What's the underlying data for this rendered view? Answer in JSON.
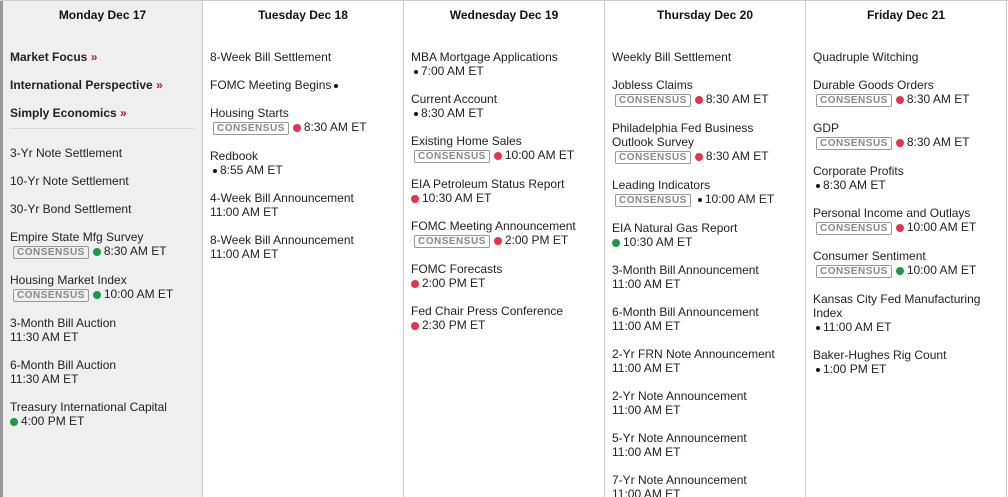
{
  "colors": {
    "red": "#e8334a",
    "green": "#1a9a45",
    "black": "#111111"
  },
  "consensus_label": "CONSENSUS",
  "days": [
    {
      "header": "Monday Dec 17",
      "today": true,
      "links": [
        {
          "label": "Market Focus",
          "arrow": "»"
        },
        {
          "label": "International Perspective",
          "arrow": "»"
        },
        {
          "label": "Simply Economics",
          "arrow": "»"
        }
      ],
      "items": [
        {
          "title": "3-Yr Note Settlement"
        },
        {
          "title": "10-Yr Note Settlement"
        },
        {
          "title": "30-Yr Bond Settlement"
        },
        {
          "title": "Empire State Mfg Survey",
          "consensus": true,
          "dot": "green",
          "time": "8:30 AM ET"
        },
        {
          "title": "Housing Market Index",
          "consensus": true,
          "dot": "green",
          "time": "10:00 AM ET"
        },
        {
          "title": "3-Month Bill Auction",
          "time": "11:30 AM ET"
        },
        {
          "title": "6-Month Bill Auction",
          "time": "11:30 AM ET"
        },
        {
          "title": "Treasury International Capital",
          "dot": "green",
          "time": "4:00 PM ET"
        }
      ]
    },
    {
      "header": "Tuesday Dec 18",
      "items": [
        {
          "title": "8-Week Bill Settlement"
        },
        {
          "title": "FOMC Meeting Begins",
          "inline_dot": true
        },
        {
          "title": "Housing Starts",
          "consensus": true,
          "dot": "red",
          "time": "8:30 AM ET"
        },
        {
          "title": "Redbook",
          "dot": "black",
          "time": "8:55 AM ET"
        },
        {
          "title": "4-Week Bill Announcement",
          "time": "11:00 AM ET"
        },
        {
          "title": "8-Week Bill Announcement",
          "time": "11:00 AM ET"
        }
      ]
    },
    {
      "header": "Wednesday Dec 19",
      "items": [
        {
          "title": "MBA Mortgage Applications",
          "dot": "black",
          "time": "7:00 AM ET"
        },
        {
          "title": "Current Account",
          "dot": "black",
          "time": "8:30 AM ET"
        },
        {
          "title": "Existing Home Sales",
          "consensus": true,
          "dot": "red",
          "time": "10:00 AM ET"
        },
        {
          "title": "EIA Petroleum Status Report",
          "dot": "red",
          "time": "10:30 AM ET"
        },
        {
          "title": "FOMC Meeting Announcement",
          "consensus": true,
          "dot": "red",
          "time": "2:00 PM ET"
        },
        {
          "title": "FOMC Forecasts",
          "dot": "red",
          "time": "2:00 PM ET"
        },
        {
          "title": "Fed Chair Press Conference",
          "dot": "red",
          "time": "2:30 PM ET"
        }
      ]
    },
    {
      "header": "Thursday Dec 20",
      "items": [
        {
          "title": "Weekly Bill Settlement"
        },
        {
          "title": "Jobless Claims",
          "consensus": true,
          "dot": "red",
          "time": "8:30 AM ET"
        },
        {
          "title": "Philadelphia Fed Business Outlook Survey",
          "consensus": true,
          "dot": "red",
          "time": "8:30 AM ET"
        },
        {
          "title": "Leading Indicators",
          "consensus": true,
          "dot": "black",
          "time": "10:00 AM ET"
        },
        {
          "title": "EIA Natural Gas Report",
          "dot": "green",
          "time": "10:30 AM ET"
        },
        {
          "title": "3-Month Bill Announcement",
          "time": "11:00 AM ET"
        },
        {
          "title": "6-Month Bill Announcement",
          "time": "11:00 AM ET"
        },
        {
          "title": "2-Yr FRN Note Announcement",
          "time": "11:00 AM ET"
        },
        {
          "title": "2-Yr Note Announcement",
          "time": "11:00 AM ET"
        },
        {
          "title": "5-Yr Note Announcement",
          "time": "11:00 AM ET"
        },
        {
          "title": "7-Yr Note Announcement",
          "time": "11:00 AM ET"
        }
      ]
    },
    {
      "header": "Friday Dec 21",
      "items": [
        {
          "title": "Quadruple Witching"
        },
        {
          "title": "Durable Goods Orders",
          "consensus": true,
          "dot": "red",
          "time": "8:30 AM ET"
        },
        {
          "title": "GDP",
          "consensus": true,
          "dot": "red",
          "time": "8:30 AM ET"
        },
        {
          "title": "Corporate Profits",
          "dot": "black",
          "time": "8:30 AM ET"
        },
        {
          "title": "Personal Income and Outlays",
          "consensus": true,
          "dot": "red",
          "time": "10:00 AM ET"
        },
        {
          "title": "Consumer Sentiment",
          "consensus": true,
          "dot": "green",
          "time": "10:00 AM ET"
        },
        {
          "title": "Kansas City Fed Manufacturing Index",
          "dot": "black",
          "time": "11:00 AM ET"
        },
        {
          "title": "Baker-Hughes Rig Count",
          "dot": "black",
          "time": "1:00 PM ET"
        }
      ]
    }
  ]
}
